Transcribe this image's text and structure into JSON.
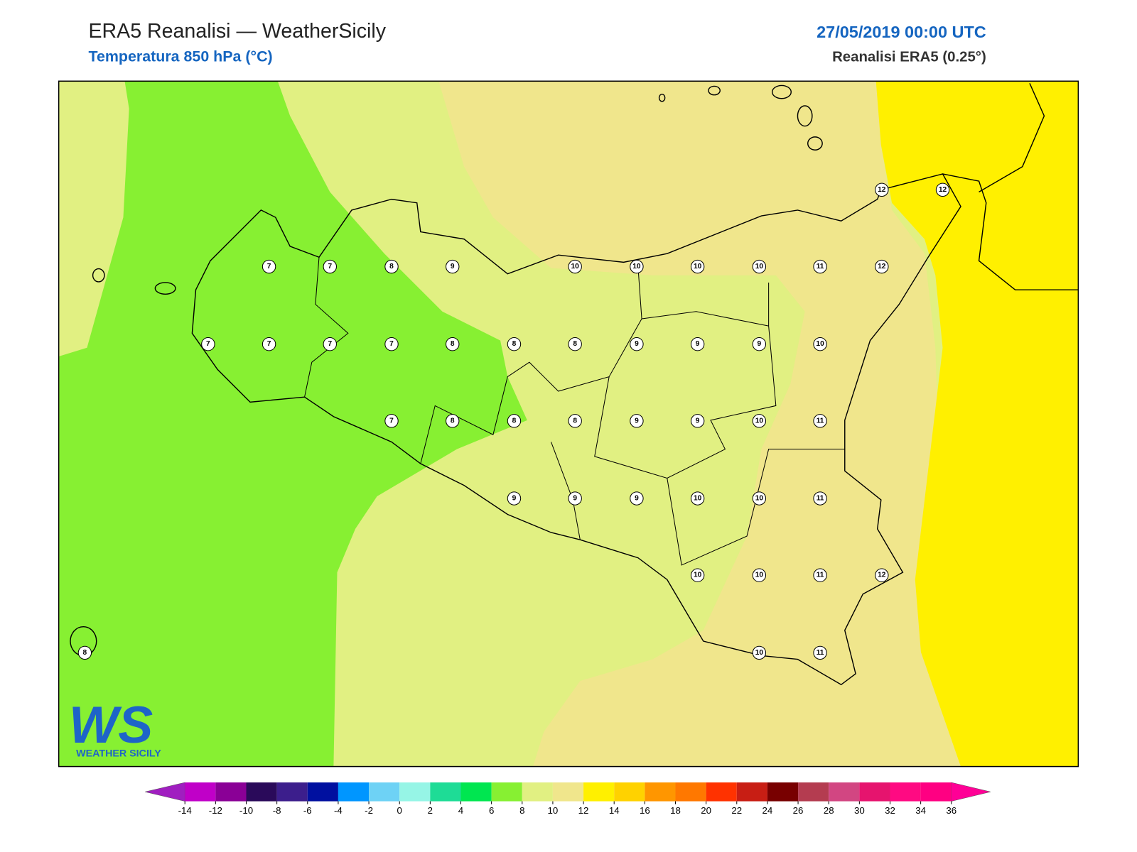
{
  "header": {
    "title": "ERA5 Reanalisi — WeatherSicily",
    "subtitle": "Temperatura 850 hPa (°C)",
    "datetime": "27/05/2019 00:00 UTC",
    "source": "Reanalisi ERA5 (0.25°)"
  },
  "stations": [
    12,
    12,
    7,
    7,
    8,
    9,
    10,
    10,
    10,
    10,
    11,
    12,
    7,
    7,
    7,
    7,
    8,
    8,
    8,
    9,
    9,
    9,
    10,
    7,
    8,
    8,
    8,
    9,
    9,
    10,
    11,
    9,
    9,
    9,
    10,
    10,
    11,
    10,
    10,
    11,
    12,
    8,
    10,
    11
  ],
  "colorbar": {
    "ticks": [
      -14,
      -12,
      -10,
      -8,
      -6,
      -4,
      -2,
      0,
      2,
      4,
      6,
      8,
      10,
      12,
      14,
      16,
      18,
      20,
      22,
      24,
      26,
      28,
      30,
      32,
      34,
      36
    ],
    "colors": [
      "#a01ec0",
      "#c000c8",
      "#8a0096",
      "#2a0a5a",
      "#3c1e8c",
      "#0010a0",
      "#0096ff",
      "#6ed2f5",
      "#96f5e6",
      "#1edc96",
      "#00e650",
      "#87f032",
      "#e1f082",
      "#f0e68c",
      "#fff000",
      "#ffd200",
      "#ff9600",
      "#ff7800",
      "#ff3200",
      "#c81e14",
      "#780000",
      "#b43c50",
      "#d24682",
      "#e6146e",
      "#ff0a82",
      "#ff0082",
      "#ff0096"
    ]
  },
  "logo": {
    "mark": "WS",
    "text": "WEATHER SICILY"
  }
}
